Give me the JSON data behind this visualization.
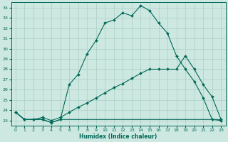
{
  "xlabel": "Humidex (Indice chaleur)",
  "background_color": "#cde8e0",
  "grid_color": "#aacec5",
  "line_color": "#006858",
  "xlim": [
    -0.5,
    23.5
  ],
  "ylim": [
    22.5,
    34.5
  ],
  "yticks": [
    23,
    24,
    25,
    26,
    27,
    28,
    29,
    30,
    31,
    32,
    33,
    34
  ],
  "xticks": [
    0,
    1,
    2,
    3,
    4,
    5,
    6,
    7,
    8,
    9,
    10,
    11,
    12,
    13,
    14,
    15,
    16,
    17,
    18,
    19,
    20,
    21,
    22,
    23
  ],
  "line1_x": [
    0,
    1,
    2,
    3,
    4,
    5,
    6,
    7,
    8,
    9,
    10,
    11,
    12,
    13,
    14,
    15,
    16,
    17,
    18,
    19,
    20,
    21,
    22,
    23
  ],
  "line1_y": [
    23.8,
    23.1,
    23.1,
    23.1,
    22.8,
    23.1,
    26.5,
    27.5,
    29.5,
    30.8,
    32.5,
    32.8,
    33.5,
    33.2,
    34.2,
    33.7,
    32.5,
    31.5,
    29.3,
    28.0,
    26.8,
    25.2,
    23.1,
    23.0
  ],
  "line2_x": [
    0,
    1,
    2,
    3,
    4,
    5,
    6,
    7,
    8,
    9,
    10,
    11,
    12,
    13,
    14,
    15,
    16,
    17,
    18,
    19,
    20,
    21,
    22,
    23
  ],
  "line2_y": [
    23.8,
    23.1,
    23.1,
    23.3,
    23.0,
    23.3,
    23.8,
    24.3,
    24.7,
    25.2,
    25.7,
    26.2,
    26.6,
    27.1,
    27.6,
    28.0,
    28.0,
    28.0,
    28.0,
    29.3,
    28.0,
    26.5,
    25.3,
    23.1
  ],
  "line3_x": [
    0,
    1,
    2,
    3,
    4,
    5,
    6,
    7,
    8,
    9,
    10,
    11,
    12,
    13,
    14,
    15,
    16,
    17,
    18,
    19,
    20,
    21,
    22,
    23
  ],
  "line3_y": [
    23.8,
    23.1,
    23.1,
    23.1,
    22.8,
    23.1,
    23.1,
    23.1,
    23.1,
    23.1,
    23.1,
    23.1,
    23.1,
    23.1,
    23.1,
    23.1,
    23.1,
    23.1,
    23.1,
    23.1,
    23.1,
    23.1,
    23.1,
    23.1
  ]
}
